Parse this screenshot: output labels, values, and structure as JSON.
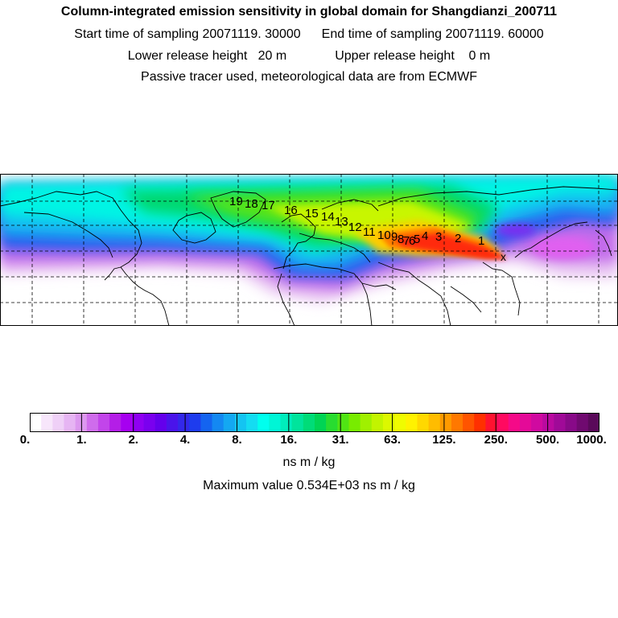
{
  "header": {
    "title": "Column-integrated emission sensitivity in global domain for Shangdianzi_200711",
    "start_label": "Start time of sampling 20071119. 30000",
    "end_label": "End time of sampling 20071119. 60000",
    "lower_label": "Lower release height   20 m",
    "upper_label": "Upper release height    0 m",
    "tracer_note": "Passive tracer used, meteorological data are from ECMWF"
  },
  "map": {
    "trajectory_labels": [
      "1",
      "2",
      "3",
      "4",
      "5",
      "6",
      "7",
      "8",
      "9",
      "10",
      "11",
      "12",
      "13",
      "14",
      "15",
      "16",
      "17",
      "18",
      "19"
    ],
    "receptor_marker": "x"
  },
  "colorbar": {
    "tick_labels": [
      "0.",
      "1.",
      "2.",
      "4.",
      "8.",
      "16.",
      "31.",
      "63.",
      "125.",
      "250.",
      "500.",
      "1000."
    ],
    "colors": [
      "#ffffff",
      "#f7e6fb",
      "#efd0f7",
      "#e6b5f3",
      "#dc98ef",
      "#cf6cec",
      "#c245ea",
      "#b41ee7",
      "#a600f0",
      "#8f00f2",
      "#7a00ef",
      "#6400ec",
      "#4a14ea",
      "#3328ea",
      "#1e3cee",
      "#1464f0",
      "#1488f2",
      "#14a8f2",
      "#14c4f2",
      "#14dcf2",
      "#00ffee",
      "#00f5d6",
      "#00edbc",
      "#00e49c",
      "#00dc78",
      "#00d454",
      "#28dc30",
      "#50e414",
      "#78ec00",
      "#a0f000",
      "#c2f400",
      "#dcf800",
      "#f0fc00",
      "#fff200",
      "#ffd800",
      "#ffbc00",
      "#ff9a00",
      "#ff7800",
      "#ff5400",
      "#ff3000",
      "#ff1230",
      "#ff0a60",
      "#f50a88",
      "#e40a98",
      "#d00aa0",
      "#ba0aa0",
      "#a00a98",
      "#880a88",
      "#700a70",
      "#5a0a5a"
    ],
    "units": "ns m / kg",
    "max_label": "Maximum value  0.534E+03 ns m / kg"
  }
}
